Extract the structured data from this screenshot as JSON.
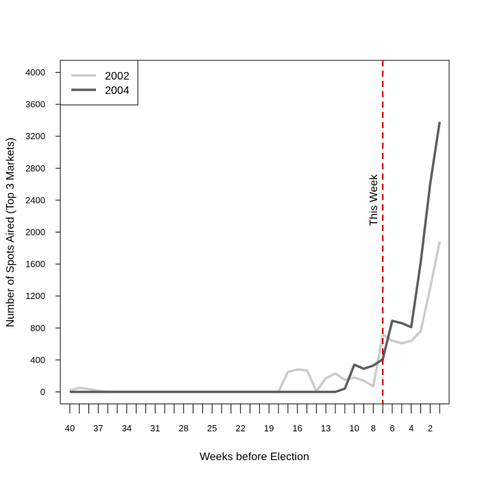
{
  "chart_data": {
    "type": "line",
    "title": "",
    "xlabel": "Weeks before Election",
    "ylabel": "Number of Spots Aired (Top 3 Markets)",
    "x": [
      40,
      39,
      38,
      37,
      36,
      35,
      34,
      33,
      32,
      31,
      30,
      29,
      28,
      27,
      26,
      25,
      24,
      23,
      22,
      21,
      20,
      19,
      18,
      17,
      16,
      15,
      14,
      13,
      12,
      11,
      10,
      9,
      8,
      7,
      6,
      5,
      4,
      3,
      2,
      1
    ],
    "x_tick_labels": [
      "40",
      "37",
      "34",
      "31",
      "28",
      "25",
      "22",
      "19",
      "16",
      "13",
      "10",
      "8",
      "6",
      "4",
      "2"
    ],
    "x_reversed": true,
    "xlim": [
      41,
      0
    ],
    "ylim": [
      -150,
      4150
    ],
    "y_ticks": [
      0,
      400,
      800,
      1200,
      1600,
      2000,
      2400,
      2800,
      3200,
      3600,
      4000
    ],
    "y_tick_labels": [
      "0",
      "400",
      "800",
      "1200",
      "1600",
      "2000",
      "2400",
      "2800",
      "3200",
      "3600",
      "4000"
    ],
    "series": [
      {
        "name": "2002",
        "color": "#cccccc",
        "values": [
          20,
          50,
          35,
          15,
          0,
          0,
          0,
          0,
          0,
          0,
          0,
          0,
          0,
          0,
          0,
          0,
          0,
          0,
          0,
          0,
          0,
          0,
          0,
          250,
          280,
          270,
          10,
          170,
          230,
          150,
          180,
          140,
          70,
          720,
          640,
          610,
          640,
          760,
          1300,
          1880
        ]
      },
      {
        "name": "2004",
        "color": "#5f5f5f",
        "values": [
          0,
          0,
          0,
          0,
          0,
          0,
          0,
          0,
          0,
          0,
          0,
          0,
          0,
          0,
          0,
          0,
          0,
          0,
          0,
          0,
          0,
          0,
          0,
          0,
          0,
          0,
          0,
          0,
          0,
          40,
          340,
          290,
          330,
          410,
          890,
          860,
          810,
          1620,
          2600,
          3380
        ]
      }
    ],
    "reference_line": {
      "x": 7,
      "label": "This Week",
      "color": "#cc0000"
    },
    "legend": {
      "position": "top-left",
      "entries": [
        "2002",
        "2004"
      ]
    },
    "grid": false
  }
}
